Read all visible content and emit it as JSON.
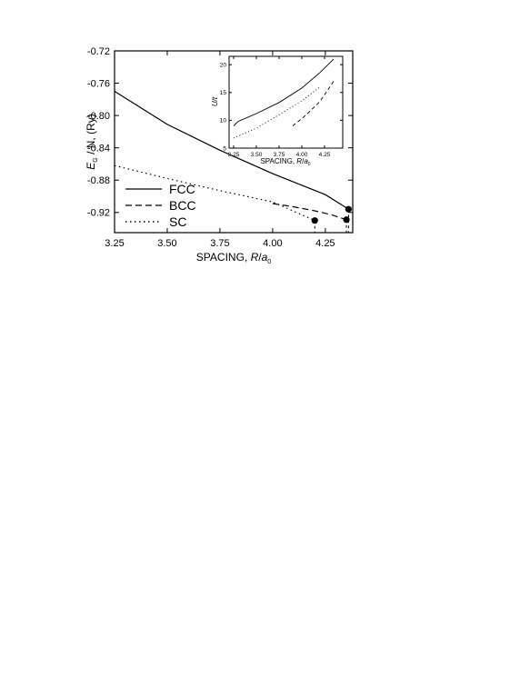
{
  "chart_data": [
    {
      "type": "line",
      "title": "",
      "xlabel": "SPACING, R/a0",
      "ylabel": "E_G / N, (Ry)",
      "xlim": [
        3.25,
        4.38
      ],
      "ylim": [
        -0.945,
        -0.72
      ],
      "xticks": [
        "3.25",
        "3.50",
        "3.75",
        "4.00",
        "4.25"
      ],
      "yticks": [
        "-0.72",
        "-0.76",
        "-0.80",
        "-0.84",
        "-0.88",
        "-0.92"
      ],
      "legend_position": "bottom-left",
      "series": [
        {
          "name": "FCC",
          "style": "solid",
          "x": [
            3.25,
            3.5,
            3.75,
            4.0,
            4.25,
            4.36
          ],
          "y": [
            -0.77,
            -0.811,
            -0.843,
            -0.872,
            -0.898,
            -0.916
          ]
        },
        {
          "name": "BCC",
          "style": "dashed",
          "x": [
            4.0,
            4.1,
            4.2,
            4.28,
            4.35
          ],
          "y": [
            -0.909,
            -0.913,
            -0.918,
            -0.923,
            -0.929
          ]
        },
        {
          "name": "SC",
          "style": "dotted",
          "x": [
            3.25,
            3.5,
            3.75,
            4.0,
            4.2
          ],
          "y": [
            -0.862,
            -0.878,
            -0.893,
            -0.907,
            -0.93
          ]
        }
      ],
      "endpoints": [
        {
          "series": "FCC",
          "x": 4.36,
          "y": -0.916
        },
        {
          "series": "BCC",
          "x": 4.35,
          "y": -0.929
        },
        {
          "series": "SC",
          "x": 4.2,
          "y": -0.93
        }
      ]
    },
    {
      "type": "line",
      "title": "",
      "xlabel": "SPACING, R/a0",
      "ylabel": "U/t",
      "xlim": [
        3.2,
        4.45
      ],
      "ylim": [
        5,
        21.5
      ],
      "xticks": [
        "3.25",
        "3.50",
        "3.75",
        "4.00",
        "4.25"
      ],
      "yticks": [
        "5",
        "10",
        "15",
        "20"
      ],
      "series": [
        {
          "name": "FCC",
          "style": "solid",
          "x": [
            3.25,
            3.3,
            3.5,
            3.75,
            4.0,
            4.2,
            4.35
          ],
          "y": [
            9.0,
            9.8,
            11.2,
            13.2,
            15.8,
            18.6,
            21.0
          ]
        },
        {
          "name": "BCC",
          "style": "dashed",
          "x": [
            3.9,
            4.0,
            4.1,
            4.2,
            4.35
          ],
          "y": [
            9.0,
            10.3,
            11.8,
            13.4,
            17.0
          ]
        },
        {
          "name": "SC",
          "style": "dotted",
          "x": [
            3.25,
            3.5,
            3.75,
            4.0,
            4.2
          ],
          "y": [
            6.8,
            8.6,
            11.0,
            13.5,
            16.0
          ]
        }
      ]
    }
  ]
}
